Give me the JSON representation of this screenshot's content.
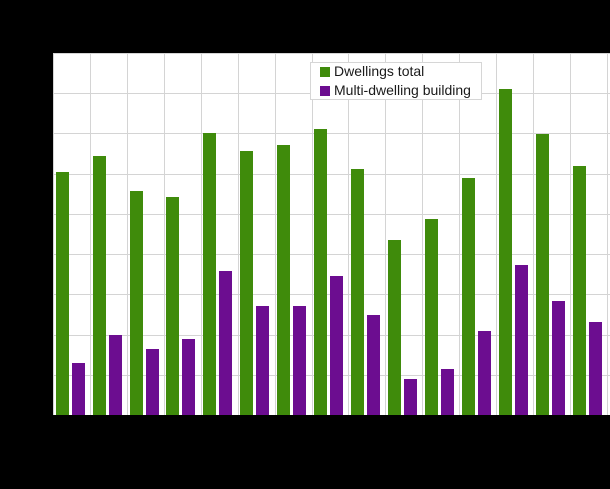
{
  "chart_data": {
    "type": "bar",
    "title": "",
    "categories": [
      "",
      "",
      "",
      "",
      "",
      "",
      "",
      "",
      "",
      "",
      "",
      "",
      "",
      "",
      ""
    ],
    "series": [
      {
        "name": "Dwellings total",
        "color": "#3f8b0b",
        "values": [
          6050,
          6440,
          5580,
          5410,
          7010,
          6570,
          6710,
          7110,
          6110,
          4360,
          4870,
          5900,
          8100,
          6990,
          6180
        ]
      },
      {
        "name": "Multi-dwelling building",
        "color": "#6c0d90",
        "values": [
          1300,
          2000,
          1640,
          1900,
          3590,
          2715,
          2715,
          3450,
          2480,
          900,
          1150,
          2100,
          3730,
          2830,
          2310
        ]
      }
    ],
    "ylim": [
      0,
      9000
    ],
    "y_gridline_step": 1000,
    "grid": true,
    "gridline_color": "#d4d4d4",
    "plot_background": "#ffffff",
    "page_background": "#000000",
    "legend_position": "top-inside"
  },
  "legend": {
    "items": [
      {
        "label": "Dwellings total",
        "color": "#3f8b0b"
      },
      {
        "label": "Multi-dwelling building",
        "color": "#6c0d90"
      }
    ],
    "background": "#ffffff",
    "border_color": "#d6d6d6"
  }
}
